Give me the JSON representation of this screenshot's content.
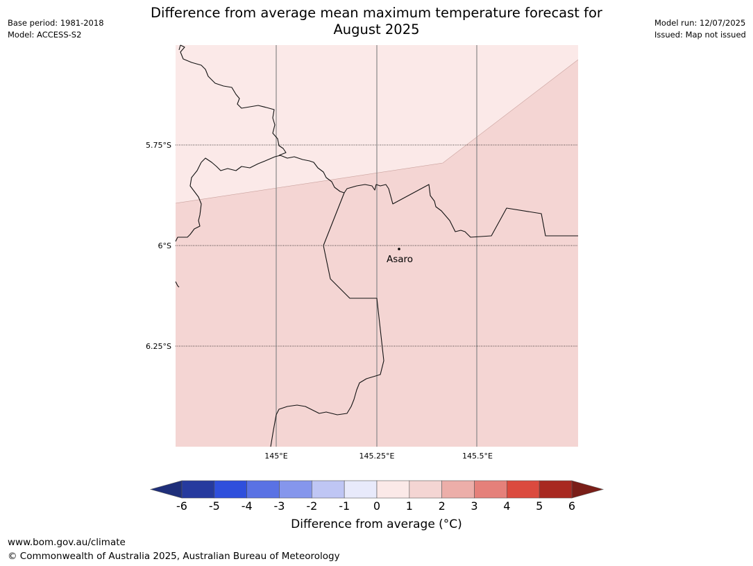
{
  "title": "Difference from average mean maximum temperature forecast for August 2025",
  "title_lines": [
    "Difference from average mean maximum temperature forecast for",
    "August 2025"
  ],
  "meta_left": {
    "base_period": "Base period: 1981-2018",
    "model": "Model: ACCESS-S2"
  },
  "meta_right": {
    "model_run": "Model run: 12/07/2025",
    "issued": "Issued: Map not issued"
  },
  "map": {
    "latitude_labels": [
      "5.75°S",
      "6°S",
      "6.25°S"
    ],
    "longitude_labels": [
      "145°E",
      "145.25°E",
      "145.5°E"
    ],
    "place": {
      "name": "Asaro"
    },
    "zones": [
      {
        "range": "0 to 1",
        "color": "#fbe9e8"
      },
      {
        "range": "1 to 2",
        "color": "#f4d5d3"
      }
    ]
  },
  "colorbar": {
    "title": "Difference from average (°C)",
    "ticks": [
      "-6",
      "-5",
      "-4",
      "-3",
      "-2",
      "-1",
      "0",
      "1",
      "2",
      "3",
      "4",
      "5",
      "6"
    ],
    "colors": [
      "#263a9e",
      "#2f4fdc",
      "#5a72e4",
      "#8596ec",
      "#bfc6f4",
      "#e8eafb",
      "#fbe9e8",
      "#f4d5d3",
      "#ecaea9",
      "#e5807a",
      "#db4a3e",
      "#a82820"
    ],
    "under_color": "#1f2f7a",
    "over_color": "#7a1e18"
  },
  "footer": {
    "url": "www.bom.gov.au/climate",
    "copyright": "© Commonwealth of Australia 2025, Australian Bureau of Meteorology"
  }
}
